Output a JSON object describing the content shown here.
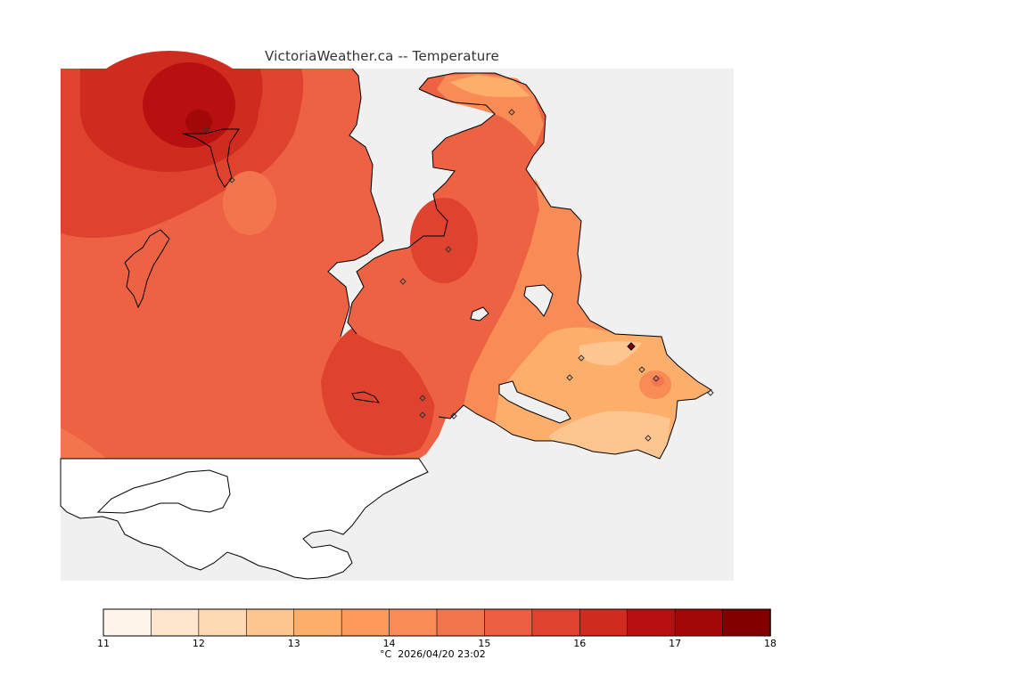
{
  "title": "VictoriaWeather.ca -- Temperature",
  "legend": {
    "ticks": [
      "11",
      "12",
      "13",
      "14",
      "15",
      "16",
      "17",
      "18"
    ],
    "colors": [
      "#fff5eb",
      "#fee6ce",
      "#fdd9b4",
      "#fdc590",
      "#fdae6b",
      "#fd9a5b",
      "#f88b56",
      "#f3754e",
      "#eb5e42",
      "#df4330",
      "#d02b1f",
      "#b81010",
      "#a30808",
      "#800000"
    ],
    "units": "°C",
    "timestamp": "2026/04/20 23:02"
  },
  "colors": {
    "background": "#f0f0f0",
    "land_uncovered": "#ffffff",
    "base_field": "#ee6040"
  }
}
